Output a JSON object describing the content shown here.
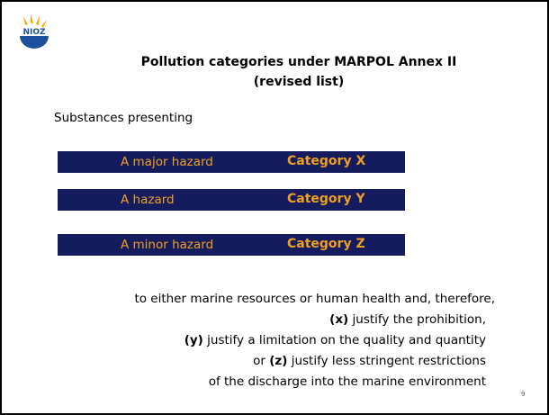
{
  "logo": "NIOZ",
  "title": [
    "Pollution categories under MARPOL Annex II",
    "(revised list)"
  ],
  "intro": "Substances presenting",
  "categories": [
    {
      "hazard": "A major hazard",
      "category": "Category X"
    },
    {
      "hazard": "A hazard",
      "category": "Category Y"
    },
    {
      "hazard": "A minor hazard",
      "category": "Category Z"
    }
  ],
  "body": [
    {
      "text": "to either marine resources or human health and, therefore,"
    },
    {
      "bold": "(x)",
      "text": " justify the prohibition,"
    },
    {
      "bold": "(y)",
      "text": " justify a limitation on the quality and quantity"
    },
    {
      "prefix": "or ",
      "bold": "(z)",
      "text": " justify less stringent restrictions"
    },
    {
      "text": "of the discharge into the marine environment"
    }
  ],
  "page_number": "9"
}
